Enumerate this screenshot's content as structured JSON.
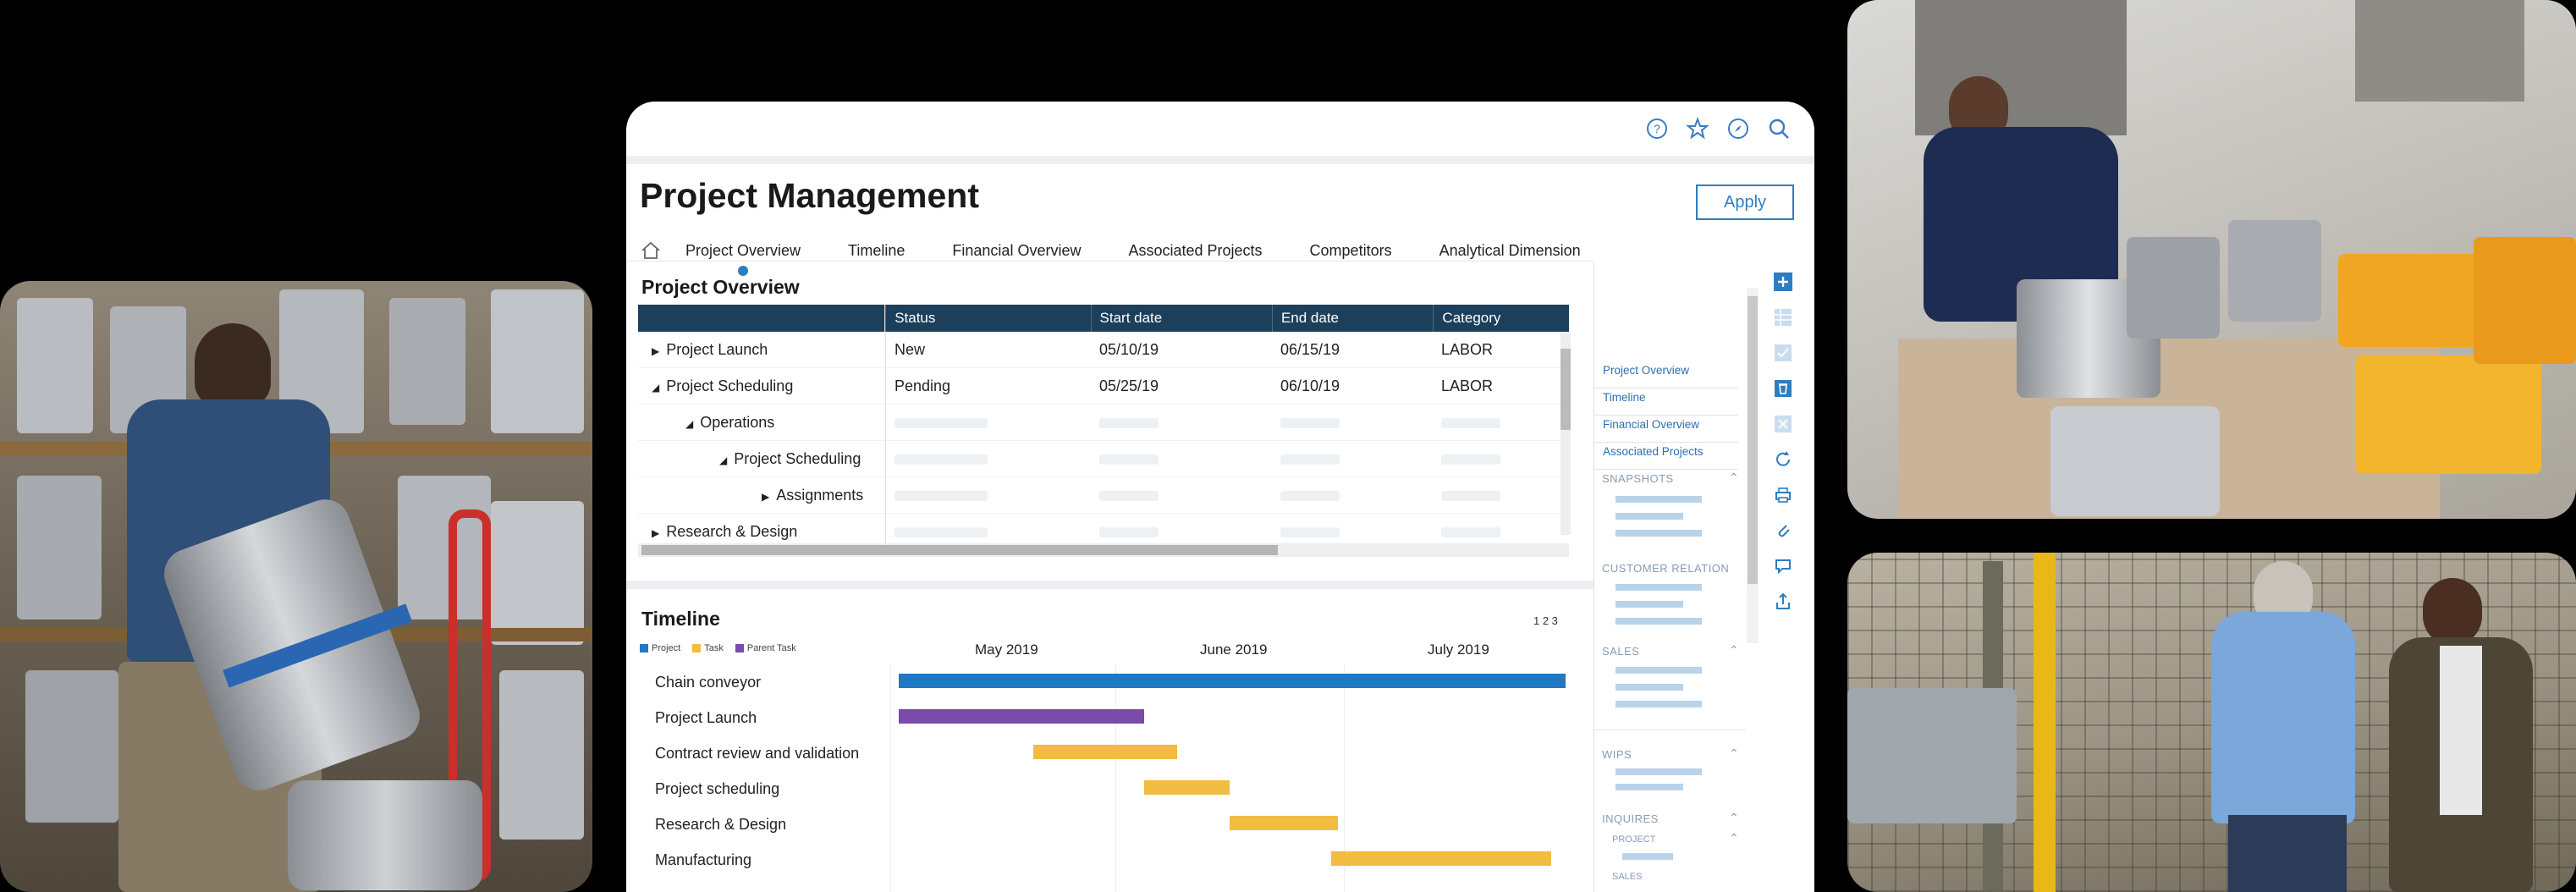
{
  "app": {
    "title": "Project Management",
    "apply_label": "Apply",
    "tabs": [
      "Project Overview",
      "Timeline",
      "Financial Overview",
      "Associated Projects",
      "Competitors",
      "Analytical Dimension"
    ],
    "active_tab": "Project Overview"
  },
  "overview": {
    "title": "Project Overview",
    "columns": [
      "",
      "Status",
      "Start date",
      "End date",
      "Category"
    ],
    "rows": [
      {
        "name": "Project Launch",
        "status": "New",
        "start": "05/10/19",
        "end": "06/15/19",
        "category": "LABOR"
      },
      {
        "name": "Project Scheduling",
        "status": "Pending",
        "start": "05/25/19",
        "end": "06/10/19",
        "category": "LABOR"
      },
      {
        "name": "Operations",
        "status": "",
        "start": "",
        "end": "",
        "category": ""
      },
      {
        "name": "Project Scheduling",
        "status": "",
        "start": "",
        "end": "",
        "category": ""
      },
      {
        "name": "Assignments",
        "status": "",
        "start": "",
        "end": "",
        "category": ""
      },
      {
        "name": "Research & Design",
        "status": "",
        "start": "",
        "end": "",
        "category": ""
      }
    ]
  },
  "timeline": {
    "title": "Timeline",
    "legend": [
      "Project",
      "Task",
      "Parent Task"
    ],
    "pager": "1 2 3",
    "months": [
      "May 2019",
      "June 2019",
      "July 2019"
    ],
    "rows": [
      "Chain conveyor",
      "Project Launch",
      "Contract review and validation",
      "Project scheduling",
      "Research & Design",
      "Manufacturing"
    ]
  },
  "side_panel": {
    "links": [
      "Project Overview",
      "Timeline",
      "Financial Overview",
      "Associated Projects"
    ],
    "sections": {
      "snapshots": "SNAPSHOTS",
      "customer_relation": "CUSTOMER RELATION",
      "sales": "SALES",
      "wips": "WIPS",
      "inquires": "INQUIRES",
      "inq_project": "PROJECT",
      "inq_sales": "SALES"
    }
  },
  "colors": {
    "project": "#1f78c1",
    "task": "#f2bb41",
    "parent_task": "#7b4bab",
    "header": "#1c3f5b",
    "accent": "#2d7dc1"
  },
  "icons": {
    "top": [
      "help-icon",
      "star-icon",
      "compass-icon",
      "search-icon"
    ],
    "toolbar": [
      "add-icon",
      "grid-icon",
      "check-icon",
      "trash-icon",
      "close-icon",
      "refresh-icon",
      "print-icon",
      "attach-icon",
      "comment-icon",
      "share-icon"
    ]
  }
}
